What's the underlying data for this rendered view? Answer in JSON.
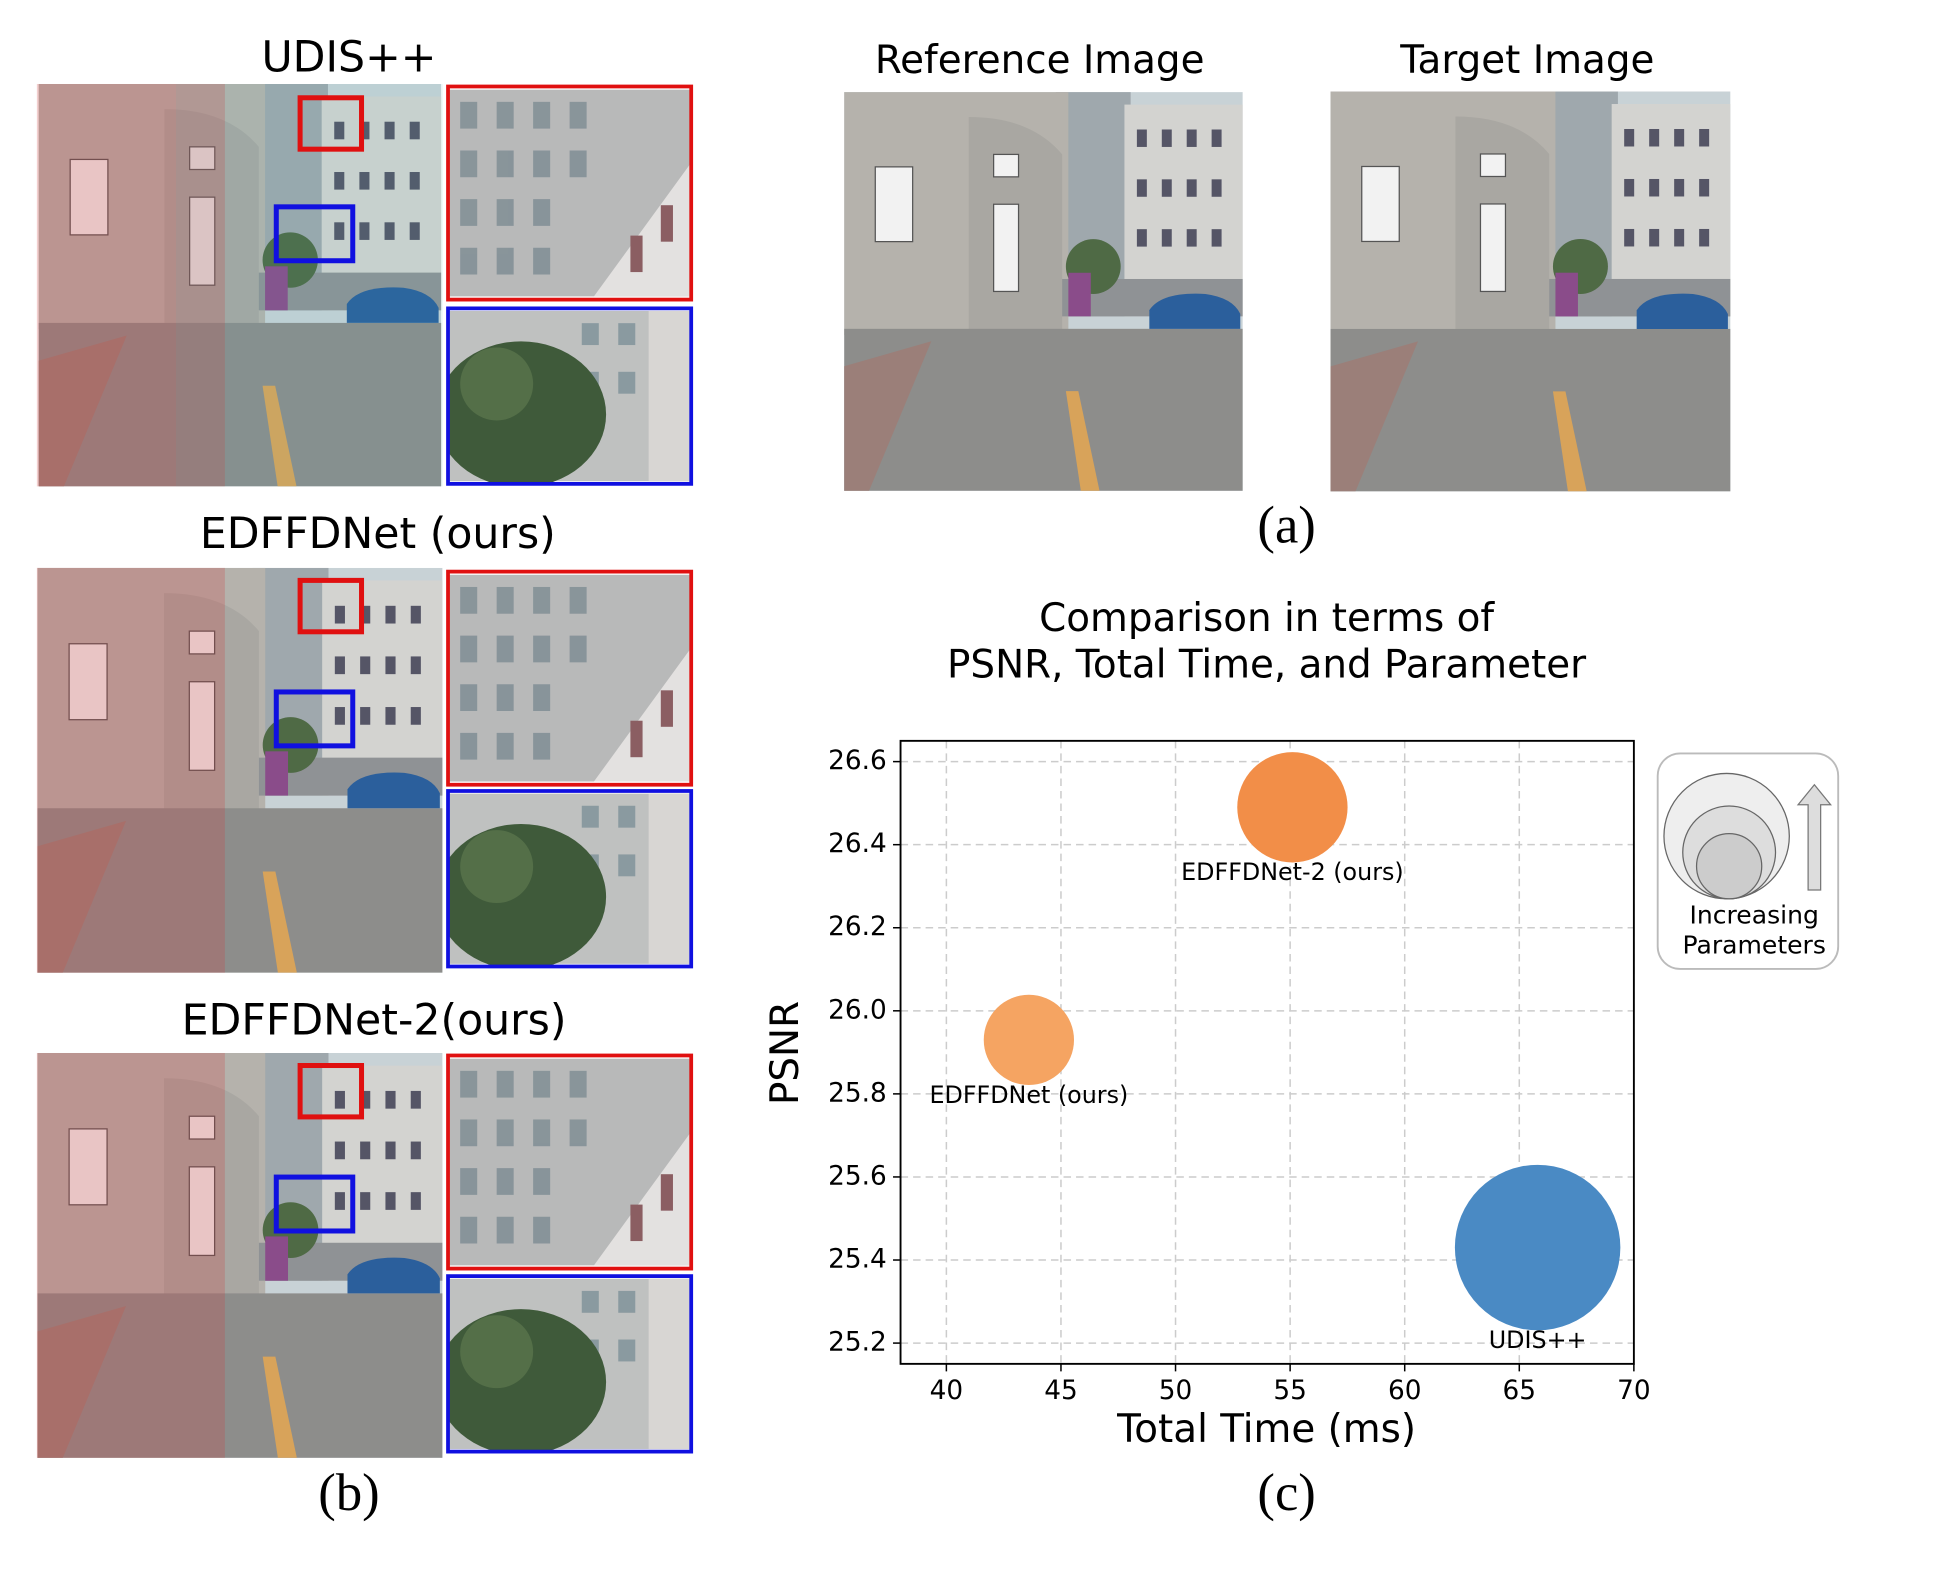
{
  "panel_b": {
    "labels": [
      "UDIS++",
      "EDFFDNet (ours)",
      "EDFFDNet-2(ours)"
    ],
    "caption": "(b)"
  },
  "panel_a": {
    "labels": [
      "Reference Image",
      "Target Image"
    ],
    "caption": "(a)"
  },
  "chart_data": {
    "type": "scatter",
    "title": [
      "Comparison in terms of",
      "PSNR, Total Time, and Parameter"
    ],
    "x_label": "Total Time (ms)",
    "y_label": "PSNR",
    "caption": "(c)",
    "xlim": [
      38,
      70
    ],
    "ylim": [
      25.15,
      26.65
    ],
    "xticks": [
      40,
      45,
      50,
      55,
      60,
      65,
      70
    ],
    "yticks": [
      25.2,
      25.4,
      25.6,
      25.8,
      {
        "value": 26,
        "label": "26.0"
      },
      26.2,
      26.4,
      26.6
    ],
    "grid": true,
    "series": [
      {
        "name": "UDIS++",
        "color": "#4a8ac4",
        "x": [
          65.8
        ],
        "values": [
          25.43
        ],
        "sizes": [
          4356
        ]
      },
      {
        "name": "EDFFDNet-2 (ours)",
        "color": "#f28e48",
        "x": [
          55.1
        ],
        "values": [
          26.49
        ],
        "sizes": [
          1936
        ]
      },
      {
        "name": "EDFFDNet (ours)",
        "color": "#f5a462",
        "x": [
          43.6
        ],
        "values": [
          25.93
        ],
        "sizes": [
          1296
        ]
      }
    ],
    "size_legend": [
      "Increasing",
      "Parameters"
    ]
  }
}
